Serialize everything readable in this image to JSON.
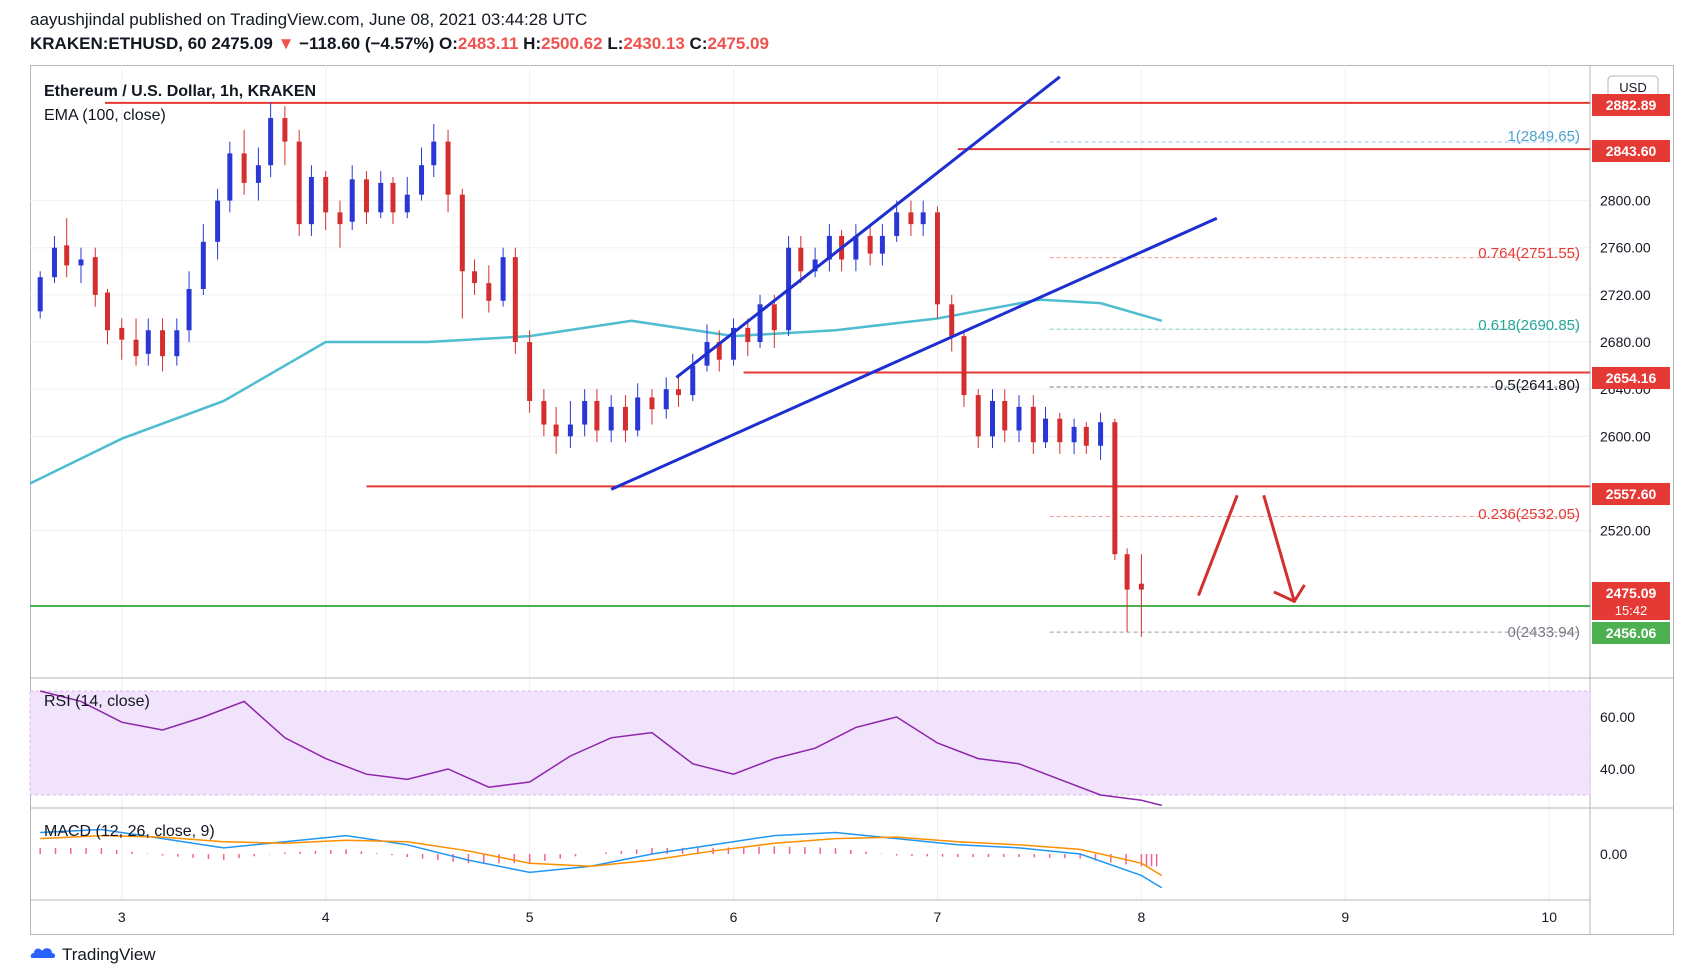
{
  "header": {
    "author": "aayushjindal",
    "published": "published on TradingView.com, June 08, 2021 03:44:28 UTC",
    "symbol": "KRAKEN:ETHUSD, 60",
    "last": "2475.09",
    "change": "−118.60 (−4.57%)",
    "o_label": "O:",
    "o": "2483.11",
    "h_label": "H:",
    "h": "2500.62",
    "l_label": "L:",
    "l": "2430.13",
    "c_label": "C:",
    "c": "2475.09"
  },
  "legend": {
    "pair": "Ethereum / U.S. Dollar, 1h, KRAKEN",
    "ema": "EMA (100, close)",
    "rsi": "RSI (14, close)",
    "macd": "MACD (12, 26, close, 9)"
  },
  "currency": "USD",
  "brand": "TradingView",
  "colors": {
    "up": "#2a37d6",
    "down": "#d42e2e",
    "ema": "#4fbdd0",
    "resistance": "#e53935",
    "support": "#4caf50",
    "channel": "#1e2fd0",
    "rsi": "#8e24aa",
    "rsi_band": "#f1e3fb",
    "macd": "#2196f3",
    "signal": "#ff8f00",
    "hist": "#f06292"
  },
  "chart_data": [
    {
      "type": "candlestick",
      "title": "Ethereum / U.S. Dollar, 1h, KRAKEN",
      "x_ticks": [
        "3",
        "4",
        "5",
        "6",
        "7",
        "8",
        "9",
        "10"
      ],
      "y_ticks": [
        "2800.00",
        "2760.00",
        "2720.00",
        "2680.00",
        "2640.00",
        "2600.00",
        "2520.00"
      ],
      "ylim": [
        2395,
        2915
      ],
      "xlim": [
        2.55,
        10.2
      ],
      "grid": true,
      "candles": [
        [
          2.6,
          2706,
          2735,
          2700,
          2740
        ],
        [
          2.67,
          2735,
          2760,
          2730,
          2770
        ],
        [
          2.73,
          2762,
          2745,
          2735,
          2785
        ],
        [
          2.8,
          2745,
          2750,
          2730,
          2760
        ],
        [
          2.87,
          2752,
          2720,
          2710,
          2760
        ],
        [
          2.93,
          2722,
          2690,
          2678,
          2725
        ],
        [
          3.0,
          2692,
          2682,
          2665,
          2700
        ],
        [
          3.07,
          2682,
          2668,
          2660,
          2700
        ],
        [
          3.13,
          2670,
          2690,
          2660,
          2700
        ],
        [
          3.2,
          2690,
          2668,
          2655,
          2700
        ],
        [
          3.27,
          2668,
          2690,
          2660,
          2700
        ],
        [
          3.33,
          2690,
          2725,
          2680,
          2740
        ],
        [
          3.4,
          2725,
          2765,
          2720,
          2780
        ],
        [
          3.47,
          2765,
          2800,
          2750,
          2810
        ],
        [
          3.53,
          2800,
          2840,
          2790,
          2850
        ],
        [
          3.6,
          2840,
          2815,
          2805,
          2860
        ],
        [
          3.67,
          2815,
          2830,
          2800,
          2845
        ],
        [
          3.73,
          2830,
          2870,
          2820,
          2883
        ],
        [
          3.8,
          2870,
          2850,
          2830,
          2880
        ],
        [
          3.87,
          2850,
          2780,
          2770,
          2860
        ],
        [
          3.93,
          2780,
          2820,
          2770,
          2830
        ],
        [
          4.0,
          2820,
          2790,
          2775,
          2825
        ],
        [
          4.07,
          2790,
          2780,
          2760,
          2800
        ],
        [
          4.13,
          2782,
          2818,
          2775,
          2830
        ],
        [
          4.2,
          2818,
          2790,
          2780,
          2825
        ],
        [
          4.27,
          2790,
          2815,
          2785,
          2825
        ],
        [
          4.33,
          2815,
          2790,
          2780,
          2820
        ],
        [
          4.4,
          2790,
          2805,
          2785,
          2820
        ],
        [
          4.47,
          2805,
          2830,
          2800,
          2845
        ],
        [
          4.53,
          2830,
          2850,
          2820,
          2865
        ],
        [
          4.6,
          2850,
          2805,
          2790,
          2860
        ],
        [
          4.67,
          2805,
          2740,
          2700,
          2810
        ],
        [
          4.73,
          2740,
          2730,
          2720,
          2750
        ],
        [
          4.8,
          2730,
          2715,
          2705,
          2745
        ],
        [
          4.87,
          2715,
          2752,
          2710,
          2760
        ],
        [
          4.93,
          2752,
          2680,
          2670,
          2760
        ],
        [
          5.0,
          2680,
          2630,
          2620,
          2690
        ],
        [
          5.07,
          2630,
          2610,
          2600,
          2640
        ],
        [
          5.13,
          2610,
          2600,
          2585,
          2625
        ],
        [
          5.2,
          2600,
          2610,
          2590,
          2630
        ],
        [
          5.27,
          2610,
          2630,
          2600,
          2640
        ],
        [
          5.33,
          2630,
          2605,
          2595,
          2640
        ],
        [
          5.4,
          2605,
          2625,
          2595,
          2635
        ],
        [
          5.47,
          2625,
          2605,
          2595,
          2635
        ],
        [
          5.53,
          2605,
          2633,
          2600,
          2645
        ],
        [
          5.6,
          2633,
          2623,
          2610,
          2640
        ],
        [
          5.67,
          2623,
          2640,
          2615,
          2650
        ],
        [
          5.73,
          2640,
          2635,
          2625,
          2650
        ],
        [
          5.8,
          2635,
          2660,
          2630,
          2670
        ],
        [
          5.87,
          2660,
          2680,
          2655,
          2695
        ],
        [
          5.93,
          2680,
          2665,
          2655,
          2690
        ],
        [
          6.0,
          2665,
          2692,
          2660,
          2700
        ],
        [
          6.07,
          2692,
          2680,
          2668,
          2700
        ],
        [
          6.13,
          2680,
          2712,
          2675,
          2720
        ],
        [
          6.2,
          2712,
          2690,
          2675,
          2720
        ],
        [
          6.27,
          2690,
          2760,
          2685,
          2770
        ],
        [
          6.33,
          2760,
          2740,
          2730,
          2770
        ],
        [
          6.4,
          2740,
          2750,
          2735,
          2760
        ],
        [
          6.47,
          2750,
          2770,
          2740,
          2780
        ],
        [
          6.53,
          2770,
          2750,
          2740,
          2775
        ],
        [
          6.6,
          2750,
          2770,
          2740,
          2780
        ],
        [
          6.67,
          2770,
          2755,
          2745,
          2780
        ],
        [
          6.73,
          2755,
          2770,
          2745,
          2780
        ],
        [
          6.8,
          2770,
          2790,
          2765,
          2800
        ],
        [
          6.87,
          2790,
          2780,
          2770,
          2800
        ],
        [
          6.93,
          2780,
          2790,
          2770,
          2800
        ],
        [
          7.0,
          2790,
          2712,
          2700,
          2795
        ],
        [
          7.07,
          2712,
          2685,
          2672,
          2720
        ],
        [
          7.13,
          2685,
          2635,
          2625,
          2690
        ],
        [
          7.2,
          2635,
          2600,
          2590,
          2640
        ],
        [
          7.27,
          2600,
          2630,
          2590,
          2640
        ],
        [
          7.33,
          2630,
          2605,
          2595,
          2640
        ],
        [
          7.4,
          2605,
          2625,
          2595,
          2635
        ],
        [
          7.47,
          2625,
          2595,
          2585,
          2635
        ],
        [
          7.53,
          2595,
          2615,
          2590,
          2625
        ],
        [
          7.6,
          2615,
          2595,
          2585,
          2620
        ],
        [
          7.67,
          2595,
          2608,
          2585,
          2615
        ],
        [
          7.73,
          2608,
          2592,
          2585,
          2612
        ]
      ]
    },
    {
      "type": "line",
      "title": "RSI (14, close)",
      "y_ticks": [
        "60.00",
        "40.00"
      ],
      "ylim": [
        25,
        75
      ],
      "band": [
        30,
        70
      ],
      "x": [
        2.6,
        2.8,
        3.0,
        3.2,
        3.4,
        3.6,
        3.8,
        4.0,
        4.2,
        4.4,
        4.6,
        4.8,
        5.0,
        5.2,
        5.4,
        5.6,
        5.8,
        6.0,
        6.2,
        6.4,
        6.6,
        6.8,
        7.0,
        7.2,
        7.4,
        7.6,
        7.8,
        8.0,
        8.1
      ],
      "values": [
        70,
        66,
        58,
        55,
        60,
        66,
        52,
        44,
        38,
        36,
        40,
        33,
        35,
        45,
        52,
        54,
        42,
        38,
        44,
        48,
        56,
        60,
        50,
        44,
        42,
        36,
        30,
        28,
        26
      ]
    },
    {
      "type": "line",
      "title": "MACD (12, 26, close, 9)",
      "y_ticks": [
        "0.00"
      ],
      "ylim": [
        -30,
        30
      ],
      "x": [
        2.6,
        2.9,
        3.2,
        3.5,
        3.8,
        4.1,
        4.4,
        4.7,
        5.0,
        5.3,
        5.6,
        5.9,
        6.2,
        6.5,
        6.8,
        7.1,
        7.4,
        7.7,
        8.0,
        8.1
      ],
      "series": [
        {
          "values": [
            14,
            16,
            10,
            4,
            8,
            12,
            6,
            -4,
            -12,
            -8,
            0,
            6,
            12,
            14,
            10,
            6,
            4,
            0,
            -14,
            -22
          ]
        },
        {
          "values": [
            10,
            12,
            11,
            8,
            7,
            9,
            8,
            2,
            -6,
            -8,
            -4,
            2,
            7,
            10,
            11,
            8,
            6,
            3,
            -6,
            -14
          ]
        }
      ]
    }
  ]
}
